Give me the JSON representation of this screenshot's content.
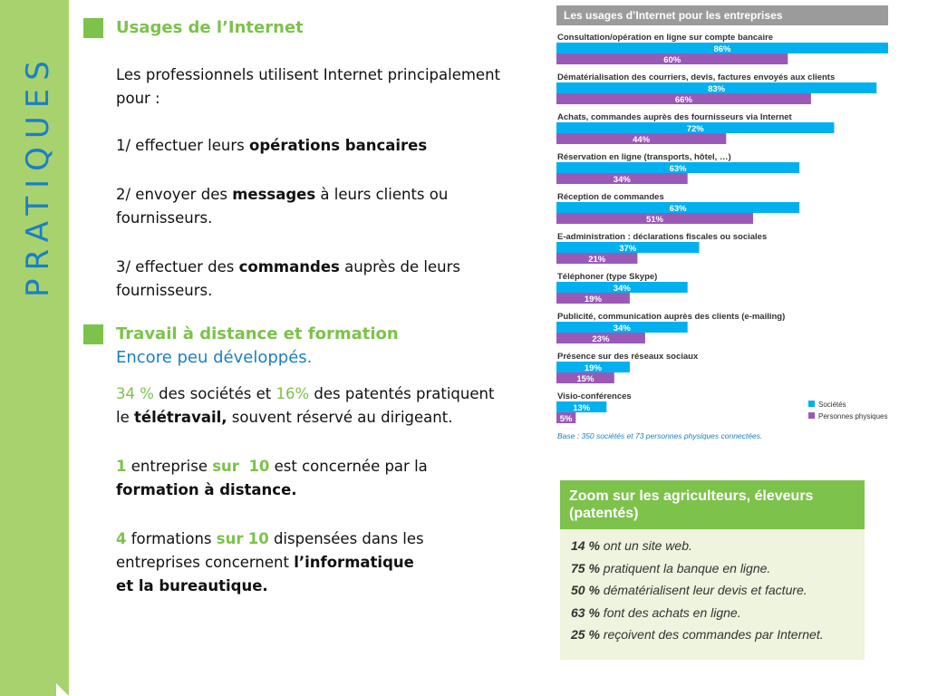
{
  "side": {
    "title": "PRATIQUES"
  },
  "usages": {
    "title": "Usages de l’Internet",
    "intro": "Les professionnels utilisent Internet principalement pour  :",
    "items": [
      {
        "pre": "1/ effectuer leurs ",
        "bold": "opérations bancaires",
        "post": ""
      },
      {
        "pre": "2/ envoyer des ",
        "bold": "messages",
        "post": " à leurs clients ou fournisseurs."
      },
      {
        "pre": "3/ effectuer des ",
        "bold": "commandes",
        "post": " auprès de leurs fournisseurs."
      }
    ]
  },
  "travail": {
    "title": "Travail à distance et formation",
    "subtitle": "Encore peu développés.",
    "p1": {
      "num1": "34 %",
      "t1": " des sociétés et ",
      "num2": "16%",
      "t2": " des patentés pratiquent le ",
      "bold": "télétravail,",
      "t3": " souvent réservé au dirigeant."
    },
    "p2": {
      "num1": "1",
      "t1": " entreprise ",
      "sur": "sur",
      "num2": "10",
      "t2": " est concernée par la ",
      "bold": "formation à distance."
    },
    "p3": {
      "num1": "4",
      "t1": " formations ",
      "sur": "sur",
      "num2": "10",
      "t2": " dispensées dans les entreprises concernent ",
      "bold1": "l’informatique",
      "bold2": "et la bureautique."
    }
  },
  "chart_data": {
    "type": "bar",
    "orientation": "horizontal",
    "title": "Les usages d’Internet pour les entreprises",
    "categories": [
      "Consultation/opération en ligne sur compte bancaire",
      "Dématérialisation des courriers, devis, factures envoyés aux clients",
      "Achats, commandes auprès des fournisseurs via Internet",
      "Réservation en ligne (transports, hôtel, …)",
      "Réception de commandes",
      "E-administration : déclarations fiscales ou sociales",
      "Téléphoner (type Skype)",
      "Publicité, communication auprès des clients (e-mailing)",
      "Présence sur des réseaux sociaux",
      "Visio-conférences"
    ],
    "series": [
      {
        "name": "Sociétés",
        "color": "#00b0ef",
        "values": [
          86,
          83,
          72,
          63,
          63,
          37,
          34,
          34,
          19,
          13
        ]
      },
      {
        "name": "Personnes physiques",
        "color": "#9b59b6",
        "values": [
          60,
          66,
          44,
          34,
          51,
          21,
          19,
          23,
          15,
          5
        ]
      }
    ],
    "value_suffix": "%",
    "xlim": [
      0,
      86
    ],
    "legend": "bottom-right",
    "note": "Base : 350 sociétés et 73 personnes physiques connectées."
  },
  "zoom": {
    "title": "Zoom sur les agriculteurs, éleveurs (patentés)",
    "items": [
      {
        "value": "14 %",
        "text": " ont un site web."
      },
      {
        "value": "75 %",
        "text": " pratiquent la banque en ligne."
      },
      {
        "value": "50 %",
        "text": " dématérialisent leur devis et facture."
      },
      {
        "value": "63 %",
        "text": " font des achats en ligne."
      },
      {
        "value": "25 %",
        "text": " reçoivent des commandes par Internet."
      }
    ]
  }
}
